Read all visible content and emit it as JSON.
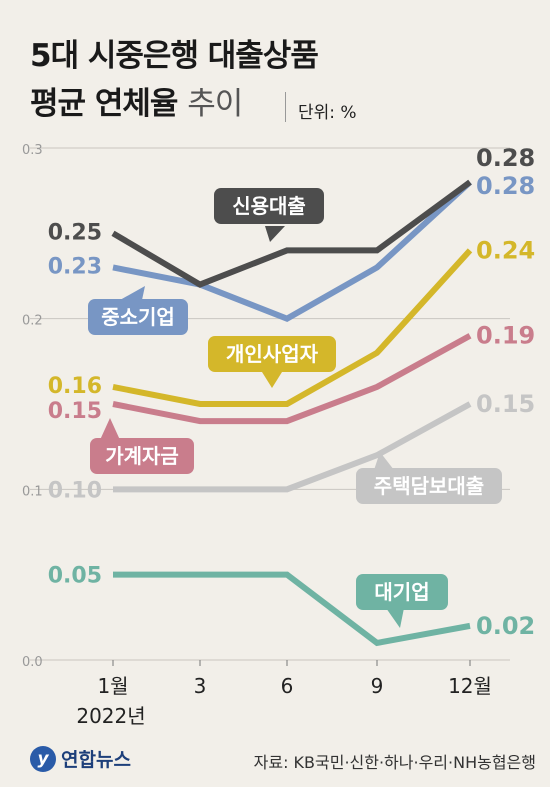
{
  "title": {
    "line1": "5대 시중은행 대출상품",
    "line2_bold": "평균 연체율",
    "line2_light": "추이",
    "unit": "단위: %"
  },
  "footer": {
    "logo_text": "연합뉴스",
    "source": "자료: KB국민·신한·하나·우리·NH농협은행"
  },
  "chart_data": {
    "type": "line",
    "x": [
      "1월",
      "3",
      "6",
      "9",
      "12월"
    ],
    "x_sublabel": "2022년",
    "ylim": [
      0,
      0.3
    ],
    "yticks": [
      "0.0",
      "0.1",
      "0.2",
      "0.3"
    ],
    "grid": true,
    "series": [
      {
        "name": "신용대출",
        "color": "#4d4d4d",
        "values": [
          0.25,
          0.22,
          0.24,
          0.24,
          0.28
        ],
        "start_label": "0.25",
        "end_label": "0.28"
      },
      {
        "name": "중소기업",
        "color": "#7896c4",
        "values": [
          0.23,
          0.22,
          0.2,
          0.23,
          0.28
        ],
        "start_label": "0.23",
        "end_label": "0.28"
      },
      {
        "name": "개인사업자",
        "color": "#d4b72a",
        "values": [
          0.16,
          0.15,
          0.15,
          0.18,
          0.24
        ],
        "start_label": "0.16",
        "end_label": "0.24"
      },
      {
        "name": "가계자금",
        "color": "#c97d8c",
        "values": [
          0.15,
          0.14,
          0.14,
          0.16,
          0.19
        ],
        "start_label": "0.15",
        "end_label": "0.19"
      },
      {
        "name": "주택담보대출",
        "color": "#c5c5c5",
        "values": [
          0.1,
          0.1,
          0.1,
          0.12,
          0.15
        ],
        "start_label": "0.10",
        "end_label": "0.15"
      },
      {
        "name": "대기업",
        "color": "#6fb3a3",
        "values": [
          0.05,
          0.05,
          0.05,
          0.01,
          0.02
        ],
        "start_label": "0.05",
        "end_label": "0.02"
      }
    ]
  }
}
